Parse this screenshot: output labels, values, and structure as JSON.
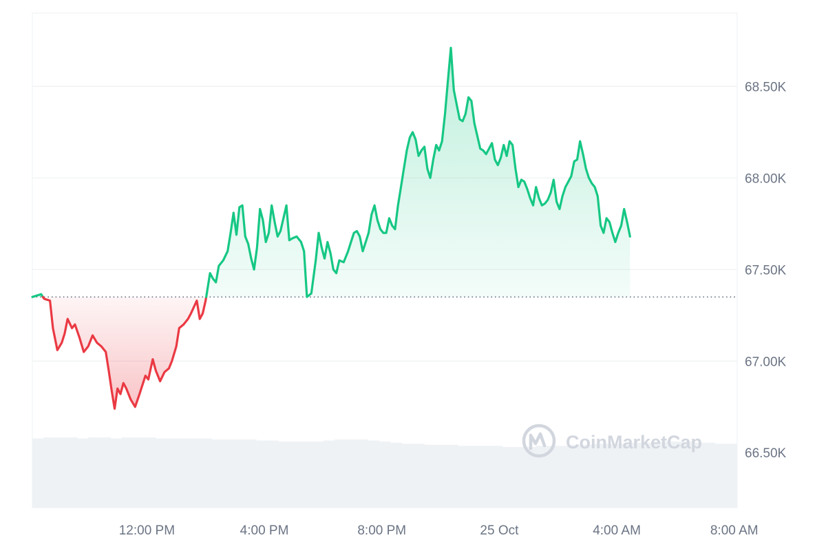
{
  "chart_data": {
    "type": "line",
    "baseline": 67350,
    "ylim": [
      66200,
      68900
    ],
    "y_ticks": [
      {
        "value": 68500,
        "label": "68.50K"
      },
      {
        "value": 68000,
        "label": "68.00K"
      },
      {
        "value": 67500,
        "label": "67.50K"
      },
      {
        "value": 67000,
        "label": "67.00K"
      },
      {
        "value": 66500,
        "label": "66.50K"
      }
    ],
    "x_ticks": [
      "12:00 PM",
      "4:00 PM",
      "8:00 PM",
      "25 Oct",
      "4:00 AM",
      "8:00 AM"
    ],
    "x_tick_hours": [
      12,
      16,
      20,
      24,
      28,
      32
    ],
    "xlim_hours": [
      8.1,
      32.1
    ],
    "colors": {
      "up_line": "#16c784",
      "down_line": "#ea3943",
      "up_fill": "#16c784",
      "down_fill": "#ea3943",
      "grid": "#eef0f3",
      "baseline": "#6b7484",
      "volume": "#eff2f5"
    },
    "series": [
      {
        "points": [
          [
            8.1,
            67350
          ],
          [
            8.3,
            67360
          ],
          [
            8.4,
            67365
          ],
          [
            8.5,
            67340
          ],
          [
            8.7,
            67330
          ],
          [
            8.8,
            67180
          ],
          [
            8.95,
            67060
          ],
          [
            9.1,
            67100
          ],
          [
            9.2,
            67150
          ],
          [
            9.3,
            67230
          ],
          [
            9.45,
            67180
          ],
          [
            9.55,
            67200
          ],
          [
            9.7,
            67130
          ],
          [
            9.85,
            67050
          ],
          [
            10.0,
            67080
          ],
          [
            10.15,
            67140
          ],
          [
            10.3,
            67100
          ],
          [
            10.45,
            67080
          ],
          [
            10.6,
            67050
          ],
          [
            10.7,
            66950
          ],
          [
            10.8,
            66840
          ],
          [
            10.9,
            66740
          ],
          [
            11.0,
            66850
          ],
          [
            11.1,
            66820
          ],
          [
            11.2,
            66880
          ],
          [
            11.3,
            66850
          ],
          [
            11.45,
            66790
          ],
          [
            11.6,
            66750
          ],
          [
            11.75,
            66820
          ],
          [
            11.85,
            66870
          ],
          [
            11.95,
            66920
          ],
          [
            12.05,
            66900
          ],
          [
            12.2,
            67010
          ],
          [
            12.3,
            66950
          ],
          [
            12.45,
            66890
          ],
          [
            12.6,
            66940
          ],
          [
            12.75,
            66960
          ],
          [
            12.85,
            67000
          ],
          [
            13.0,
            67080
          ],
          [
            13.1,
            67180
          ],
          [
            13.25,
            67200
          ],
          [
            13.4,
            67230
          ],
          [
            13.5,
            67260
          ],
          [
            13.7,
            67330
          ],
          [
            13.8,
            67230
          ],
          [
            13.9,
            67260
          ],
          [
            14.0,
            67330
          ],
          [
            14.15,
            67480
          ],
          [
            14.25,
            67450
          ],
          [
            14.35,
            67430
          ],
          [
            14.45,
            67520
          ],
          [
            14.6,
            67550
          ],
          [
            14.75,
            67600
          ],
          [
            14.85,
            67700
          ],
          [
            14.95,
            67810
          ],
          [
            15.05,
            67690
          ],
          [
            15.15,
            67840
          ],
          [
            15.25,
            67850
          ],
          [
            15.35,
            67680
          ],
          [
            15.45,
            67640
          ],
          [
            15.55,
            67560
          ],
          [
            15.65,
            67500
          ],
          [
            15.75,
            67620
          ],
          [
            15.85,
            67830
          ],
          [
            15.95,
            67770
          ],
          [
            16.05,
            67650
          ],
          [
            16.15,
            67700
          ],
          [
            16.25,
            67850
          ],
          [
            16.35,
            67760
          ],
          [
            16.45,
            67680
          ],
          [
            16.55,
            67710
          ],
          [
            16.65,
            67780
          ],
          [
            16.75,
            67850
          ],
          [
            16.85,
            67660
          ],
          [
            16.95,
            67670
          ],
          [
            17.1,
            67680
          ],
          [
            17.25,
            67650
          ],
          [
            17.35,
            67600
          ],
          [
            17.45,
            67350
          ],
          [
            17.6,
            67370
          ],
          [
            17.75,
            67550
          ],
          [
            17.85,
            67700
          ],
          [
            17.95,
            67620
          ],
          [
            18.05,
            67560
          ],
          [
            18.15,
            67650
          ],
          [
            18.25,
            67590
          ],
          [
            18.35,
            67500
          ],
          [
            18.45,
            67480
          ],
          [
            18.55,
            67550
          ],
          [
            18.7,
            67540
          ],
          [
            18.85,
            67600
          ],
          [
            18.95,
            67650
          ],
          [
            19.05,
            67700
          ],
          [
            19.15,
            67710
          ],
          [
            19.25,
            67680
          ],
          [
            19.35,
            67600
          ],
          [
            19.45,
            67650
          ],
          [
            19.55,
            67700
          ],
          [
            19.65,
            67800
          ],
          [
            19.75,
            67850
          ],
          [
            19.85,
            67770
          ],
          [
            19.95,
            67720
          ],
          [
            20.05,
            67700
          ],
          [
            20.15,
            67700
          ],
          [
            20.25,
            67780
          ],
          [
            20.35,
            67740
          ],
          [
            20.45,
            67720
          ],
          [
            20.55,
            67850
          ],
          [
            20.65,
            67950
          ],
          [
            20.75,
            68050
          ],
          [
            20.85,
            68150
          ],
          [
            20.95,
            68220
          ],
          [
            21.05,
            68250
          ],
          [
            21.15,
            68210
          ],
          [
            21.25,
            68120
          ],
          [
            21.35,
            68150
          ],
          [
            21.45,
            68170
          ],
          [
            21.55,
            68050
          ],
          [
            21.65,
            68000
          ],
          [
            21.75,
            68100
          ],
          [
            21.85,
            68180
          ],
          [
            21.95,
            68150
          ],
          [
            22.05,
            68200
          ],
          [
            22.15,
            68350
          ],
          [
            22.25,
            68530
          ],
          [
            22.35,
            68710
          ],
          [
            22.45,
            68480
          ],
          [
            22.55,
            68400
          ],
          [
            22.65,
            68320
          ],
          [
            22.75,
            68310
          ],
          [
            22.85,
            68350
          ],
          [
            22.95,
            68440
          ],
          [
            23.05,
            68420
          ],
          [
            23.15,
            68300
          ],
          [
            23.25,
            68230
          ],
          [
            23.35,
            68160
          ],
          [
            23.45,
            68150
          ],
          [
            23.55,
            68130
          ],
          [
            23.65,
            68160
          ],
          [
            23.75,
            68190
          ],
          [
            23.85,
            68100
          ],
          [
            23.95,
            68070
          ],
          [
            24.05,
            68110
          ],
          [
            24.15,
            68180
          ],
          [
            24.25,
            68120
          ],
          [
            24.35,
            68200
          ],
          [
            24.45,
            68180
          ],
          [
            24.55,
            68050
          ],
          [
            24.65,
            67950
          ],
          [
            24.75,
            67990
          ],
          [
            24.85,
            67980
          ],
          [
            24.95,
            67940
          ],
          [
            25.05,
            67890
          ],
          [
            25.15,
            67850
          ],
          [
            25.25,
            67950
          ],
          [
            25.35,
            67890
          ],
          [
            25.45,
            67850
          ],
          [
            25.55,
            67860
          ],
          [
            25.65,
            67880
          ],
          [
            25.75,
            67920
          ],
          [
            25.85,
            67990
          ],
          [
            25.95,
            67870
          ],
          [
            26.05,
            67830
          ],
          [
            26.15,
            67900
          ],
          [
            26.25,
            67950
          ],
          [
            26.35,
            67980
          ],
          [
            26.45,
            68010
          ],
          [
            26.55,
            68090
          ],
          [
            26.65,
            68100
          ],
          [
            26.75,
            68200
          ],
          [
            26.85,
            68130
          ],
          [
            26.95,
            68050
          ],
          [
            27.05,
            68000
          ],
          [
            27.15,
            67970
          ],
          [
            27.25,
            67950
          ],
          [
            27.35,
            67900
          ],
          [
            27.45,
            67740
          ],
          [
            27.55,
            67700
          ],
          [
            27.65,
            67780
          ],
          [
            27.75,
            67760
          ],
          [
            27.85,
            67700
          ],
          [
            27.95,
            67650
          ],
          [
            28.05,
            67700
          ],
          [
            28.15,
            67740
          ],
          [
            28.25,
            67830
          ],
          [
            28.35,
            67760
          ],
          [
            28.45,
            67680
          ]
        ]
      }
    ],
    "volume": [
      0.65,
      0.66,
      0.66,
      0.66,
      0.65,
      0.66,
      0.66,
      0.65,
      0.66,
      0.66,
      0.66,
      0.65,
      0.65,
      0.65,
      0.65,
      0.65,
      0.64,
      0.64,
      0.64,
      0.64,
      0.63,
      0.63,
      0.62,
      0.62,
      0.62,
      0.62,
      0.63,
      0.64,
      0.64,
      0.64,
      0.63,
      0.62,
      0.61,
      0.6,
      0.6,
      0.59,
      0.59,
      0.59,
      0.58,
      0.58,
      0.58,
      0.58,
      0.57,
      0.57,
      0.57,
      0.58,
      0.58,
      0.58,
      0.59,
      0.59,
      0.6,
      0.6,
      0.6,
      0.61,
      0.61,
      0.61,
      0.62,
      0.62,
      0.62,
      0.61,
      0.61,
      0.6,
      0.6
    ],
    "watermark": "CoinMarketCap"
  }
}
